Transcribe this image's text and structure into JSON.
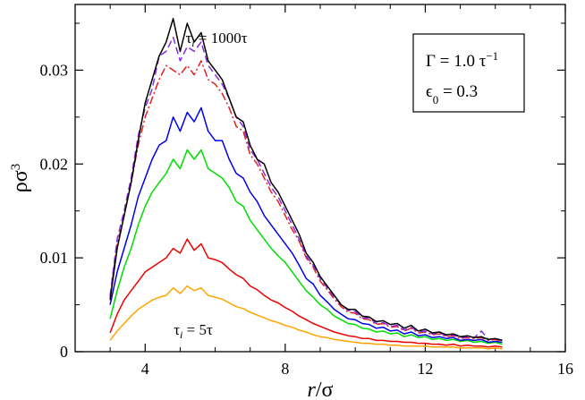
{
  "chart_data": {
    "type": "line",
    "title": "",
    "xlabel": "r/σ",
    "ylabel": "ρσ³",
    "xlim": [
      2,
      16
    ],
    "ylim": [
      0,
      0.037
    ],
    "x_ticks": [
      4,
      8,
      12,
      16
    ],
    "y_ticks": [
      0,
      0.01,
      0.02,
      0.03
    ],
    "x_tick_labels": [
      "4",
      "8",
      "12",
      "16"
    ],
    "y_tick_labels": [
      "0",
      "0.01",
      "0.02",
      "0.03"
    ],
    "x_min_ticks": [
      3,
      5,
      6,
      7,
      9,
      10,
      11,
      13,
      14,
      15
    ],
    "y_min_ticks": [
      0.005,
      0.015,
      0.025,
      0.035
    ],
    "legend_box": {
      "line1": "Γ = 1.0 τ⁻¹",
      "line2": "ϵ₀ = 0.3",
      "position": "top-right"
    },
    "annotations": {
      "top": "τᵢ = 1000τ",
      "bottom": "τᵢ = 5τ"
    },
    "series": [
      {
        "name": "τi=1000τ",
        "color": "#000000",
        "dash": "solid",
        "peak_x": 4.85,
        "peak": 0.0345,
        "width_left": 1.05,
        "width_right": 1.9,
        "x": [
          3.0,
          3.2,
          3.4,
          3.6,
          3.8,
          4.0,
          4.2,
          4.4,
          4.6,
          4.8,
          5.0,
          5.2,
          5.4,
          5.6,
          5.8,
          6.0,
          6.2,
          6.4,
          6.6,
          6.8,
          7.0,
          7.2,
          7.4,
          7.6,
          7.8,
          8.0,
          8.2,
          8.4,
          8.6,
          8.8,
          9.0,
          9.2,
          9.4,
          9.6,
          9.8,
          10.0,
          10.2,
          10.4,
          10.6,
          10.8,
          11.0,
          11.2,
          11.4,
          11.6,
          11.8,
          12.0,
          12.2,
          12.4,
          12.6,
          12.8,
          13.0,
          13.2,
          13.4,
          13.6,
          13.8,
          14.0,
          14.2
        ],
        "values": [
          0.0055,
          0.011,
          0.0145,
          0.018,
          0.0225,
          0.0265,
          0.029,
          0.0315,
          0.033,
          0.0355,
          0.032,
          0.035,
          0.033,
          0.034,
          0.031,
          0.03,
          0.029,
          0.027,
          0.025,
          0.0245,
          0.022,
          0.0205,
          0.02,
          0.018,
          0.017,
          0.0155,
          0.014,
          0.0125,
          0.0105,
          0.0095,
          0.008,
          0.007,
          0.006,
          0.005,
          0.0045,
          0.0045,
          0.0038,
          0.0037,
          0.0032,
          0.0033,
          0.0029,
          0.003,
          0.0025,
          0.0028,
          0.0022,
          0.0024,
          0.002,
          0.0021,
          0.0018,
          0.0019,
          0.0016,
          0.0017,
          0.0015,
          0.0016,
          0.0013,
          0.0014,
          0.0012
        ]
      },
      {
        "name": "dashed-violet",
        "color": "#8a2be2",
        "dash": "8,4",
        "peak_x": 4.9,
        "peak": 0.0325,
        "width_left": 1.05,
        "width_right": 1.95,
        "x": [
          3.0,
          3.2,
          3.4,
          3.6,
          3.8,
          4.0,
          4.2,
          4.4,
          4.6,
          4.8,
          5.0,
          5.2,
          5.4,
          5.6,
          5.8,
          6.0,
          6.2,
          6.4,
          6.6,
          6.8,
          7.0,
          7.2,
          7.4,
          7.6,
          7.8,
          8.0,
          8.2,
          8.4,
          8.6,
          8.8,
          9.0,
          9.2,
          9.4,
          9.6,
          9.8,
          10.0,
          10.2,
          10.4,
          10.6,
          10.8,
          11.0,
          11.2,
          11.4,
          11.6,
          11.8,
          12.0,
          12.2,
          12.4,
          12.6,
          12.8,
          13.0,
          13.2,
          13.4,
          13.6,
          13.8,
          14.0,
          14.2
        ],
        "values": [
          0.006,
          0.012,
          0.015,
          0.0185,
          0.023,
          0.026,
          0.028,
          0.0315,
          0.032,
          0.0335,
          0.031,
          0.0325,
          0.032,
          0.033,
          0.0305,
          0.0295,
          0.0285,
          0.027,
          0.025,
          0.024,
          0.0215,
          0.0205,
          0.019,
          0.0175,
          0.0165,
          0.015,
          0.0135,
          0.012,
          0.0102,
          0.0092,
          0.0078,
          0.0068,
          0.0058,
          0.005,
          0.0044,
          0.0043,
          0.0036,
          0.0036,
          0.003,
          0.0031,
          0.0027,
          0.0028,
          0.0023,
          0.0026,
          0.0021,
          0.0022,
          0.0019,
          0.002,
          0.0017,
          0.0018,
          0.0015,
          0.0016,
          0.0015,
          0.0022,
          0.0013,
          0.0014,
          0.0012
        ]
      },
      {
        "name": "dashdot-red",
        "color": "#e02020",
        "dash": "9,3,2,3",
        "peak_x": 4.95,
        "peak": 0.031,
        "width_left": 1.05,
        "width_right": 1.95,
        "x": [
          3.0,
          3.2,
          3.4,
          3.6,
          3.8,
          4.0,
          4.2,
          4.4,
          4.6,
          4.8,
          5.0,
          5.2,
          5.4,
          5.6,
          5.8,
          6.0,
          6.2,
          6.4,
          6.6,
          6.8,
          7.0,
          7.2,
          7.4,
          7.6,
          7.8,
          8.0,
          8.2,
          8.4,
          8.6,
          8.8,
          9.0,
          9.2,
          9.4,
          9.6,
          9.8,
          10.0,
          10.2,
          10.4,
          10.6,
          10.8,
          11.0,
          11.2,
          11.4,
          11.6,
          11.8,
          12.0,
          12.2,
          12.4,
          12.6,
          12.8,
          13.0,
          13.2,
          13.4,
          13.6,
          13.8,
          14.0,
          14.2
        ],
        "values": [
          0.0058,
          0.0115,
          0.0145,
          0.018,
          0.022,
          0.025,
          0.027,
          0.029,
          0.0305,
          0.03,
          0.0295,
          0.0305,
          0.0295,
          0.031,
          0.029,
          0.0285,
          0.0275,
          0.026,
          0.024,
          0.0235,
          0.021,
          0.02,
          0.0185,
          0.017,
          0.016,
          0.0145,
          0.013,
          0.0118,
          0.01,
          0.009,
          0.0075,
          0.0066,
          0.0056,
          0.0048,
          0.0042,
          0.0041,
          0.0035,
          0.0034,
          0.0029,
          0.003,
          0.0026,
          0.0027,
          0.0022,
          0.0025,
          0.002,
          0.0021,
          0.0018,
          0.0019,
          0.0016,
          0.0017,
          0.0014,
          0.0015,
          0.0014,
          0.0015,
          0.0012,
          0.0013,
          0.0011
        ]
      },
      {
        "name": "blue",
        "color": "#0000ee",
        "dash": "solid",
        "peak_x": 5.0,
        "peak": 0.0255,
        "width_left": 1.05,
        "width_right": 1.9,
        "x": [
          3.0,
          3.2,
          3.4,
          3.6,
          3.8,
          4.0,
          4.2,
          4.4,
          4.6,
          4.8,
          5.0,
          5.2,
          5.4,
          5.6,
          5.8,
          6.0,
          6.2,
          6.4,
          6.6,
          6.8,
          7.0,
          7.2,
          7.4,
          7.6,
          7.8,
          8.0,
          8.2,
          8.4,
          8.6,
          8.8,
          9.0,
          9.2,
          9.4,
          9.6,
          9.8,
          10.0,
          10.2,
          10.4,
          10.6,
          10.8,
          11.0,
          11.2,
          11.4,
          11.6,
          11.8,
          12.0,
          12.2,
          12.4,
          12.6,
          12.8,
          13.0,
          13.2,
          13.4,
          13.6,
          13.8,
          14.0,
          14.2
        ],
        "values": [
          0.005,
          0.0085,
          0.011,
          0.0135,
          0.0165,
          0.0185,
          0.0205,
          0.022,
          0.0225,
          0.025,
          0.0235,
          0.0255,
          0.0245,
          0.026,
          0.0235,
          0.0225,
          0.0225,
          0.0205,
          0.019,
          0.0185,
          0.017,
          0.016,
          0.0145,
          0.0135,
          0.0125,
          0.0115,
          0.0105,
          0.0092,
          0.0078,
          0.0072,
          0.006,
          0.0053,
          0.0045,
          0.004,
          0.0035,
          0.0034,
          0.003,
          0.0029,
          0.0025,
          0.0026,
          0.0022,
          0.0023,
          0.0019,
          0.0021,
          0.0017,
          0.0018,
          0.0015,
          0.0016,
          0.0014,
          0.0015,
          0.0012,
          0.0013,
          0.0012,
          0.0013,
          0.001,
          0.0011,
          0.001
        ]
      },
      {
        "name": "green",
        "color": "#00dd00",
        "dash": "solid",
        "peak_x": 5.0,
        "peak": 0.0215,
        "width_left": 1.0,
        "width_right": 1.85,
        "x": [
          3.0,
          3.2,
          3.4,
          3.6,
          3.8,
          4.0,
          4.2,
          4.4,
          4.6,
          4.8,
          5.0,
          5.2,
          5.4,
          5.6,
          5.8,
          6.0,
          6.2,
          6.4,
          6.6,
          6.8,
          7.0,
          7.2,
          7.4,
          7.6,
          7.8,
          8.0,
          8.2,
          8.4,
          8.6,
          8.8,
          9.0,
          9.2,
          9.4,
          9.6,
          9.8,
          10.0,
          10.2,
          10.4,
          10.6,
          10.8,
          11.0,
          11.2,
          11.4,
          11.6,
          11.8,
          12.0,
          12.2,
          12.4,
          12.6,
          12.8,
          13.0,
          13.2,
          13.4,
          13.6,
          13.8,
          14.0,
          14.2
        ],
        "values": [
          0.0035,
          0.0065,
          0.009,
          0.011,
          0.0135,
          0.0155,
          0.017,
          0.018,
          0.019,
          0.0205,
          0.0195,
          0.0215,
          0.0205,
          0.0215,
          0.0195,
          0.019,
          0.0185,
          0.0175,
          0.016,
          0.0155,
          0.014,
          0.013,
          0.012,
          0.011,
          0.0102,
          0.0095,
          0.0085,
          0.0075,
          0.0065,
          0.0058,
          0.005,
          0.0045,
          0.0038,
          0.0034,
          0.003,
          0.0029,
          0.0025,
          0.0024,
          0.0021,
          0.0022,
          0.0019,
          0.002,
          0.0016,
          0.0018,
          0.0015,
          0.0016,
          0.0013,
          0.0014,
          0.0012,
          0.0013,
          0.0011,
          0.0012,
          0.001,
          0.0011,
          0.0009,
          0.001,
          0.0008
        ]
      },
      {
        "name": "red",
        "color": "#ee0000",
        "dash": "solid",
        "peak_x": 5.05,
        "peak": 0.0115,
        "width_left": 1.0,
        "width_right": 1.85,
        "x": [
          3.0,
          3.2,
          3.4,
          3.6,
          3.8,
          4.0,
          4.2,
          4.4,
          4.6,
          4.8,
          5.0,
          5.2,
          5.4,
          5.6,
          5.8,
          6.0,
          6.2,
          6.4,
          6.6,
          6.8,
          7.0,
          7.2,
          7.4,
          7.6,
          7.8,
          8.0,
          8.2,
          8.4,
          8.6,
          8.8,
          9.0,
          9.2,
          9.4,
          9.6,
          9.8,
          10.0,
          10.2,
          10.4,
          10.6,
          10.8,
          11.0,
          11.2,
          11.4,
          11.6,
          11.8,
          12.0,
          12.2,
          12.4,
          12.6,
          12.8,
          13.0,
          13.2,
          13.4,
          13.6,
          13.8,
          14.0,
          14.2
        ],
        "values": [
          0.002,
          0.004,
          0.0055,
          0.0065,
          0.0075,
          0.0085,
          0.009,
          0.0095,
          0.01,
          0.011,
          0.0105,
          0.012,
          0.0108,
          0.0115,
          0.01,
          0.0098,
          0.0095,
          0.0088,
          0.0082,
          0.0078,
          0.007,
          0.0066,
          0.006,
          0.0055,
          0.0052,
          0.0047,
          0.0043,
          0.0038,
          0.0034,
          0.003,
          0.0027,
          0.0024,
          0.0021,
          0.0019,
          0.0017,
          0.0016,
          0.0014,
          0.0014,
          0.0012,
          0.0012,
          0.0011,
          0.0011,
          0.001,
          0.001,
          0.0009,
          0.0009,
          0.0008,
          0.0008,
          0.0007,
          0.0008,
          0.0006,
          0.0007,
          0.0006,
          0.0006,
          0.0005,
          0.0006,
          0.0005
        ]
      },
      {
        "name": "τi=5τ",
        "color": "#ffa500",
        "dash": "solid",
        "peak_x": 5.1,
        "peak": 0.0068,
        "width_left": 1.0,
        "width_right": 1.85,
        "x": [
          3.0,
          3.2,
          3.4,
          3.6,
          3.8,
          4.0,
          4.2,
          4.4,
          4.6,
          4.8,
          5.0,
          5.2,
          5.4,
          5.6,
          5.8,
          6.0,
          6.2,
          6.4,
          6.6,
          6.8,
          7.0,
          7.2,
          7.4,
          7.6,
          7.8,
          8.0,
          8.2,
          8.4,
          8.6,
          8.8,
          9.0,
          9.2,
          9.4,
          9.6,
          9.8,
          10.0,
          10.2,
          10.4,
          10.6,
          10.8,
          11.0,
          11.2,
          11.4,
          11.6,
          11.8,
          12.0,
          12.2,
          12.4,
          12.6,
          12.8,
          13.0,
          13.2,
          13.4,
          13.6,
          13.8,
          14.0,
          14.2
        ],
        "values": [
          0.0012,
          0.0022,
          0.003,
          0.0038,
          0.0045,
          0.005,
          0.0055,
          0.0058,
          0.006,
          0.0068,
          0.0062,
          0.007,
          0.0065,
          0.0068,
          0.006,
          0.0058,
          0.0056,
          0.0052,
          0.0048,
          0.0046,
          0.0042,
          0.0039,
          0.0036,
          0.0033,
          0.0031,
          0.0028,
          0.0026,
          0.0023,
          0.0021,
          0.0018,
          0.0016,
          0.0015,
          0.0013,
          0.0012,
          0.0011,
          0.001,
          0.0009,
          0.0009,
          0.0008,
          0.0008,
          0.0007,
          0.0007,
          0.0006,
          0.0006,
          0.0006,
          0.0006,
          0.0005,
          0.0005,
          0.0005,
          0.0005,
          0.0004,
          0.0004,
          0.0004,
          0.0004,
          0.0003,
          0.0004,
          0.0003
        ]
      }
    ]
  }
}
